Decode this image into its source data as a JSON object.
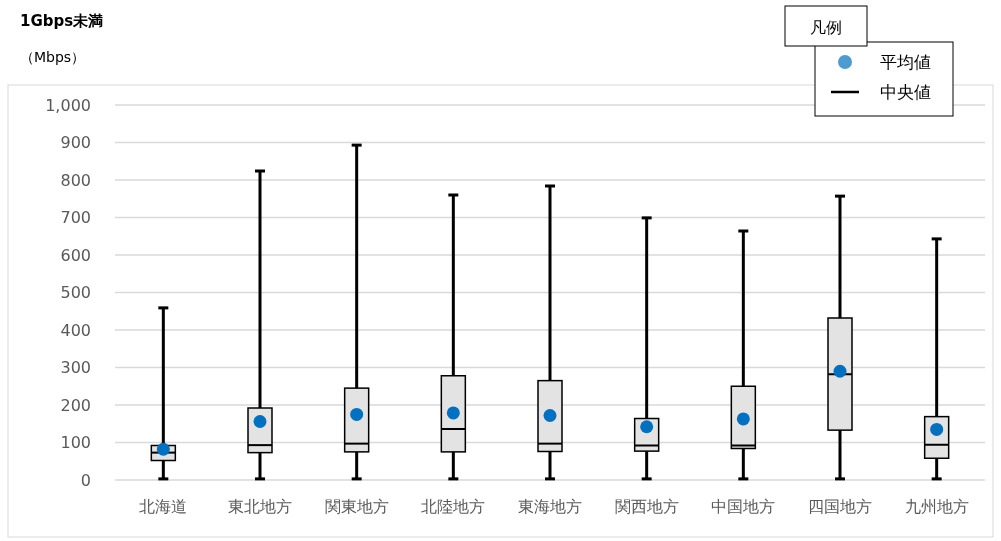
{
  "chart_data": {
    "type": "box",
    "title": "1Gbps未満",
    "ylabel": "（Mbps）",
    "legend_title": "凡例",
    "legend": "top right",
    "grid": "y",
    "categories": [
      "北海道",
      "東北地方",
      "関東地方",
      "北陸地方",
      "東海地方",
      "関西地方",
      "中国地方",
      "四国地方",
      "九州地方"
    ],
    "ylim": [
      0,
      1000
    ],
    "yticks": [
      0,
      100,
      200,
      300,
      400,
      500,
      600,
      700,
      800,
      900,
      {
        "value": 1000,
        "label": "1,000"
      }
    ],
    "series": [
      {
        "name": "平均値",
        "type": "scatter",
        "marker": "circle",
        "color": "#0070c0",
        "values": [
          82,
          156,
          175,
          179,
          172,
          142,
          163,
          290,
          135
        ]
      },
      {
        "name": "中央値",
        "type": "box",
        "color": "#000000",
        "boxes": [
          {
            "low": 3,
            "q1": 52,
            "median": 73,
            "q3": 92,
            "high": 459
          },
          {
            "low": 3,
            "q1": 73,
            "median": 93,
            "q3": 192,
            "high": 824
          },
          {
            "low": 3,
            "q1": 75,
            "median": 97,
            "q3": 245,
            "high": 893
          },
          {
            "low": 3,
            "q1": 75,
            "median": 136,
            "q3": 278,
            "high": 760
          },
          {
            "low": 3,
            "q1": 76,
            "median": 97,
            "q3": 265,
            "high": 784
          },
          {
            "low": 3,
            "q1": 77,
            "median": 92,
            "q3": 164,
            "high": 699
          },
          {
            "low": 3,
            "q1": 84,
            "median": 92,
            "q3": 250,
            "high": 664
          },
          {
            "low": 3,
            "q1": 133,
            "median": 282,
            "q3": 432,
            "high": 757
          },
          {
            "low": 3,
            "q1": 58,
            "median": 94,
            "q3": 169,
            "high": 643
          }
        ]
      }
    ]
  }
}
